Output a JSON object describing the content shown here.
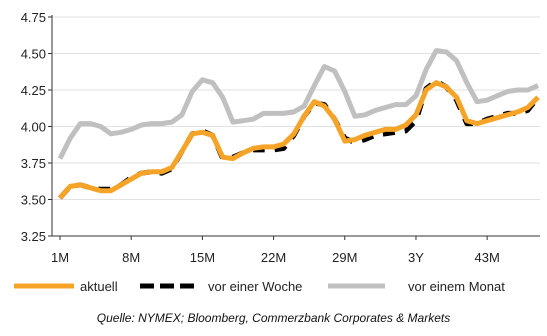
{
  "chart_data": {
    "type": "line",
    "title": "",
    "xlabel": "",
    "ylabel": "",
    "ylim": [
      3.25,
      4.75
    ],
    "xlim": [
      1,
      48
    ],
    "yticks": [
      "3.25",
      "3.50",
      "3.75",
      "4.00",
      "4.25",
      "4.50",
      "4.75"
    ],
    "xticks": [
      {
        "x": 1,
        "label": "1M"
      },
      {
        "x": 8,
        "label": "8M"
      },
      {
        "x": 15,
        "label": "15M"
      },
      {
        "x": 22,
        "label": "22M"
      },
      {
        "x": 29,
        "label": "29M"
      },
      {
        "x": 36,
        "label": "3Y"
      },
      {
        "x": 43,
        "label": "43M"
      }
    ],
    "grid": true,
    "legend_position": "bottom",
    "series": [
      {
        "name": "vor einem Monat",
        "color": "#c0c0c0",
        "style": "solid",
        "x": [
          1,
          2,
          3,
          4,
          5,
          6,
          7,
          8,
          9,
          10,
          11,
          12,
          13,
          14,
          15,
          16,
          17,
          18,
          19,
          20,
          21,
          22,
          23,
          24,
          25,
          26,
          27,
          28,
          29,
          30,
          31,
          32,
          33,
          34,
          35,
          36,
          37,
          38,
          39,
          40,
          41,
          42,
          43,
          44,
          45,
          46,
          47,
          48
        ],
        "values": [
          3.78,
          3.92,
          4.02,
          4.02,
          4.0,
          3.95,
          3.96,
          3.98,
          4.01,
          4.02,
          4.02,
          4.03,
          4.08,
          4.24,
          4.32,
          4.3,
          4.2,
          4.03,
          4.04,
          4.05,
          4.09,
          4.09,
          4.09,
          4.1,
          4.14,
          4.28,
          4.41,
          4.38,
          4.24,
          4.07,
          4.08,
          4.11,
          4.13,
          4.15,
          4.15,
          4.21,
          4.39,
          4.52,
          4.51,
          4.45,
          4.3,
          4.17,
          4.18,
          4.21,
          4.24,
          4.25,
          4.25,
          4.28
        ]
      },
      {
        "name": "vor einer Woche",
        "color": "#000000",
        "style": "dashed",
        "x": [
          1,
          2,
          3,
          4,
          5,
          6,
          7,
          8,
          9,
          10,
          11,
          12,
          13,
          14,
          15,
          16,
          17,
          18,
          19,
          20,
          21,
          22,
          23,
          24,
          25,
          26,
          27,
          28,
          29,
          30,
          31,
          32,
          33,
          34,
          35,
          36,
          37,
          38,
          39,
          40,
          41,
          42,
          43,
          44,
          45,
          46,
          47,
          48
        ],
        "values": [
          3.51,
          3.59,
          3.6,
          3.58,
          3.57,
          3.57,
          3.6,
          3.65,
          3.68,
          3.69,
          3.68,
          3.71,
          3.83,
          3.95,
          3.97,
          3.94,
          3.78,
          3.79,
          3.82,
          3.84,
          3.84,
          3.84,
          3.85,
          3.94,
          4.07,
          4.16,
          4.15,
          4.05,
          3.92,
          3.89,
          3.91,
          3.94,
          3.95,
          3.96,
          3.97,
          4.04,
          4.26,
          4.31,
          4.27,
          4.18,
          4.02,
          4.02,
          4.05,
          4.07,
          4.09,
          4.09,
          4.11,
          4.2
        ]
      },
      {
        "name": "aktuell",
        "color": "#f6a428",
        "style": "solid",
        "x": [
          1,
          2,
          3,
          4,
          5,
          6,
          7,
          8,
          9,
          10,
          11,
          12,
          13,
          14,
          15,
          16,
          17,
          18,
          19,
          20,
          21,
          22,
          23,
          24,
          25,
          26,
          27,
          28,
          29,
          30,
          31,
          32,
          33,
          34,
          35,
          36,
          37,
          38,
          39,
          40,
          41,
          42,
          43,
          44,
          45,
          46,
          47,
          48
        ],
        "values": [
          3.51,
          3.59,
          3.6,
          3.58,
          3.56,
          3.56,
          3.6,
          3.64,
          3.68,
          3.69,
          3.69,
          3.72,
          3.83,
          3.95,
          3.96,
          3.94,
          3.79,
          3.78,
          3.82,
          3.85,
          3.86,
          3.86,
          3.88,
          3.95,
          4.07,
          4.17,
          4.14,
          4.05,
          3.9,
          3.91,
          3.94,
          3.96,
          3.98,
          3.98,
          4.01,
          4.08,
          4.25,
          4.3,
          4.27,
          4.2,
          4.04,
          4.02,
          4.04,
          4.06,
          4.08,
          4.1,
          4.13,
          4.2
        ]
      }
    ]
  },
  "legend": {
    "items": [
      {
        "label": "aktuell",
        "color": "#f6a428",
        "style": "solid"
      },
      {
        "label": "vor einer Woche",
        "color": "#000000",
        "style": "dashed"
      },
      {
        "label": "vor einem Monat",
        "color": "#c0c0c0",
        "style": "solid"
      }
    ]
  },
  "source_text": "Quelle: NYMEX; Bloomberg, Commerzbank Corporates & Markets"
}
